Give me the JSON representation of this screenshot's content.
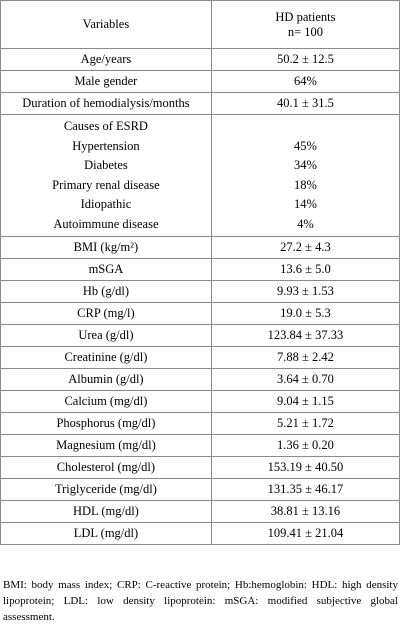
{
  "table": {
    "header": {
      "variables": "Variables",
      "group_line1": "HD patients",
      "group_line2": "n= 100"
    },
    "rows_top": [
      {
        "label": "Age/years",
        "value": "50.2 ± 12.5"
      },
      {
        "label": "Male gender",
        "value": "64%"
      },
      {
        "label": "Duration of hemodialysis/months",
        "value": "40.1 ± 31.5"
      }
    ],
    "causes": {
      "title": "Causes of ESRD",
      "items": [
        {
          "label": "Hypertension",
          "value": "45%"
        },
        {
          "label": "Diabetes",
          "value": "34%"
        },
        {
          "label": "Primary renal disease",
          "value": "18%"
        },
        {
          "label": "Idiopathic",
          "value": "14%"
        },
        {
          "label": "Autoimmune disease",
          "value": "4%"
        }
      ]
    },
    "rows_bottom": [
      {
        "label": "BMI (kg/m²)",
        "value": "27.2 ± 4.3"
      },
      {
        "label": "mSGA",
        "value": "13.6 ± 5.0"
      },
      {
        "label": "Hb (g/dl)",
        "value": "9.93 ± 1.53"
      },
      {
        "label": "CRP (mg/l)",
        "value": "19.0 ± 5.3"
      },
      {
        "label": "Urea (g/dl)",
        "value": "123.84 ± 37.33"
      },
      {
        "label": "Creatinine (g/dl)",
        "value": "7.88 ± 2.42"
      },
      {
        "label": "Albumin (g/dl)",
        "value": "3.64 ± 0.70"
      },
      {
        "label": "Calcium (mg/dl)",
        "value": "9.04 ± 1.15"
      },
      {
        "label": "Phosphorus (mg/dl)",
        "value": "5.21 ± 1.72"
      },
      {
        "label": "Magnesium (mg/dl)",
        "value": "1.36 ± 0.20"
      },
      {
        "label": "Cholesterol (mg/dl)",
        "value": "153.19 ± 40.50"
      },
      {
        "label": "Triglyceride (mg/dl)",
        "value": "131.35 ± 46.17"
      },
      {
        "label": "HDL (mg/dl)",
        "value": "38.81 ± 13.16"
      },
      {
        "label": "LDL (mg/dl)",
        "value": "109.41 ± 21.04"
      }
    ]
  },
  "footnote": "BMI: body mass index; CRP: C-reactive protein; Hb:hemoglobin: HDL: high density lipoprotein; LDL: low density lipoprotein: mSGA: modified subjective global assessment."
}
